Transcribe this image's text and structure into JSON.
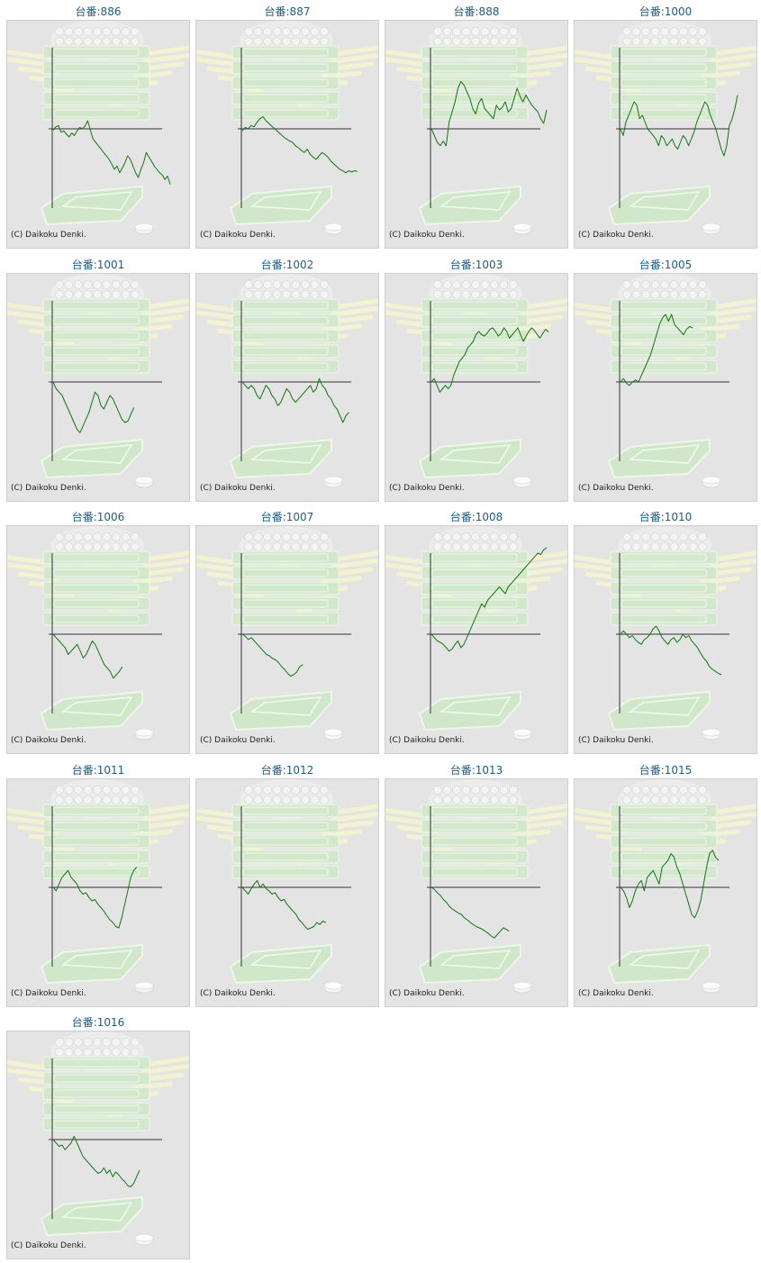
{
  "colors": {
    "title_text": "#1a5e86",
    "panel_bg": "#e4e4e4",
    "panel_border": "#cfcfcf",
    "line": "#117711",
    "axis": "#333333",
    "watermark_green": "#cfe8c8",
    "watermark_rays": "#f3f3d0"
  },
  "copyright": "(C) Daikoku Denki.",
  "chart_data": [
    {
      "type": "line",
      "title": "台番:886",
      "values": [
        -2,
        3,
        5,
        -5,
        -3,
        -8,
        -12,
        -6,
        -10,
        -3,
        2,
        0,
        4,
        12,
        -2,
        -15,
        -20,
        -25,
        -30,
        -35,
        -40,
        -45,
        -52,
        -60,
        -55,
        -65,
        -58,
        -50,
        -40,
        -45,
        -55,
        -65,
        -72,
        -60,
        -50,
        -35,
        -42,
        -48,
        -55,
        -60,
        -65,
        -68,
        -75,
        -70,
        -82
      ]
    },
    {
      "type": "line",
      "title": "台番:887",
      "values": [
        -3,
        2,
        0,
        5,
        3,
        10,
        15,
        18,
        12,
        8,
        4,
        0,
        -4,
        -8,
        -12,
        -15,
        -18,
        -20,
        -25,
        -28,
        -32,
        -35,
        -30,
        -38,
        -42,
        -45,
        -40,
        -35,
        -38,
        -42,
        -48,
        -52,
        -56,
        -60,
        -62,
        -65,
        -62,
        -64,
        -62,
        -63
      ]
    },
    {
      "type": "line",
      "title": "台番:888",
      "values": [
        0,
        -10,
        -20,
        -25,
        -18,
        -25,
        10,
        25,
        40,
        60,
        70,
        65,
        55,
        45,
        30,
        22,
        38,
        45,
        30,
        25,
        20,
        15,
        35,
        28,
        32,
        40,
        25,
        30,
        45,
        60,
        48,
        40,
        50,
        42,
        35,
        30,
        25,
        15,
        8,
        28
      ]
    },
    {
      "type": "line",
      "title": "台番:1000",
      "values": [
        0,
        -10,
        10,
        20,
        30,
        40,
        35,
        15,
        20,
        10,
        0,
        -5,
        -10,
        -15,
        -25,
        -10,
        -15,
        -25,
        -20,
        -15,
        -25,
        -30,
        -20,
        -10,
        -15,
        -25,
        -15,
        -5,
        10,
        20,
        30,
        40,
        35,
        20,
        10,
        0,
        -15,
        -30,
        -40,
        -25,
        5,
        15,
        30,
        50
      ]
    },
    {
      "type": "line",
      "title": "台番:1001",
      "values": [
        0,
        -10,
        -15,
        -20,
        -30,
        -40,
        -50,
        -60,
        -70,
        -75,
        -65,
        -55,
        -45,
        -30,
        -15,
        -20,
        -35,
        -40,
        -30,
        -20,
        -25,
        -35,
        -45,
        -55,
        -60,
        -58,
        -48,
        -38
      ]
    },
    {
      "type": "line",
      "title": "台番:1002",
      "values": [
        0,
        -5,
        -10,
        -5,
        -10,
        -20,
        -25,
        -15,
        -5,
        -10,
        -20,
        -25,
        -35,
        -30,
        -20,
        -10,
        -15,
        -25,
        -30,
        -25,
        -20,
        -15,
        -10,
        -5,
        -15,
        -10,
        5,
        -5,
        -10,
        -20,
        -25,
        -35,
        -40,
        -50,
        -60,
        -50,
        -45
      ]
    },
    {
      "type": "line",
      "title": "台番:1003",
      "values": [
        0,
        5,
        -5,
        -15,
        -10,
        -5,
        -10,
        -5,
        10,
        20,
        30,
        35,
        40,
        50,
        55,
        60,
        70,
        75,
        70,
        68,
        72,
        78,
        80,
        75,
        68,
        72,
        80,
        75,
        65,
        70,
        75,
        80,
        70,
        60,
        68,
        75,
        80,
        76,
        70,
        65,
        72,
        78,
        74
      ]
    },
    {
      "type": "line",
      "title": "台番:1005",
      "values": [
        0,
        5,
        -2,
        -5,
        0,
        3,
        0,
        10,
        20,
        30,
        40,
        55,
        70,
        85,
        95,
        100,
        90,
        100,
        85,
        80,
        75,
        70,
        78,
        82,
        80
      ]
    },
    {
      "type": "line",
      "title": "台番:1006",
      "values": [
        0,
        -5,
        -10,
        -15,
        -20,
        -30,
        -25,
        -20,
        -15,
        -25,
        -35,
        -30,
        -20,
        -10,
        -15,
        -25,
        -35,
        -45,
        -50,
        -55,
        -65,
        -60,
        -55,
        -48
      ]
    },
    {
      "type": "line",
      "title": "台番:1007",
      "values": [
        0,
        -3,
        -8,
        -5,
        -10,
        -15,
        -20,
        -25,
        -30,
        -32,
        -36,
        -38,
        -42,
        -48,
        -52,
        -58,
        -62,
        -60,
        -56,
        -48,
        -45
      ]
    },
    {
      "type": "line",
      "title": "台番:1008",
      "values": [
        0,
        -5,
        -10,
        -12,
        -15,
        -20,
        -25,
        -22,
        -15,
        -10,
        -20,
        -15,
        -5,
        5,
        15,
        25,
        35,
        45,
        40,
        50,
        55,
        60,
        65,
        70,
        65,
        60,
        70,
        75,
        80,
        85,
        90,
        95,
        100,
        105,
        110,
        115,
        120,
        118,
        125,
        128
      ]
    },
    {
      "type": "line",
      "title": "台番:1010",
      "values": [
        0,
        5,
        0,
        -5,
        -2,
        -8,
        -12,
        -15,
        -8,
        -5,
        0,
        8,
        12,
        5,
        -5,
        -10,
        -15,
        -8,
        -5,
        -12,
        -8,
        0,
        -5,
        -2,
        -10,
        -15,
        -20,
        -28,
        -35,
        -40,
        -48,
        -52,
        -55,
        -58,
        -60
      ]
    },
    {
      "type": "line",
      "title": "台番:1011",
      "values": [
        0,
        -5,
        5,
        15,
        20,
        25,
        15,
        10,
        5,
        -5,
        -10,
        -8,
        -15,
        -20,
        -18,
        -25,
        -30,
        -35,
        -42,
        -48,
        -52,
        -58,
        -60,
        -45,
        -25,
        -5,
        15,
        25,
        30
      ]
    },
    {
      "type": "line",
      "title": "台番:1012",
      "values": [
        0,
        -5,
        -10,
        -2,
        5,
        10,
        0,
        5,
        -2,
        -5,
        -10,
        -8,
        -15,
        -20,
        -18,
        -25,
        -30,
        -35,
        -40,
        -48,
        -52,
        -58,
        -62,
        -60,
        -58,
        -52,
        -55,
        -50,
        -52
      ]
    },
    {
      "type": "line",
      "title": "台番:1013",
      "values": [
        0,
        -3,
        -8,
        -12,
        -18,
        -22,
        -28,
        -32,
        -35,
        -38,
        -40,
        -45,
        -48,
        -52,
        -55,
        -58,
        -60,
        -62,
        -65,
        -68,
        -72,
        -75,
        -70,
        -65,
        -60,
        -62,
        -65
      ]
    },
    {
      "type": "line",
      "title": "台番:1015",
      "values": [
        0,
        -5,
        -15,
        -30,
        -20,
        -5,
        5,
        10,
        -5,
        15,
        20,
        25,
        15,
        5,
        30,
        35,
        40,
        50,
        45,
        30,
        20,
        5,
        -10,
        -25,
        -40,
        -45,
        -35,
        -20,
        5,
        30,
        50,
        55,
        45,
        40
      ]
    },
    {
      "type": "line",
      "title": "台番:1016",
      "values": [
        0,
        -5,
        -10,
        -8,
        -15,
        -10,
        -5,
        5,
        -5,
        -15,
        -25,
        -30,
        -35,
        -40,
        -45,
        -50,
        -48,
        -42,
        -50,
        -45,
        -55,
        -48,
        -52,
        -58,
        -62,
        -68,
        -70,
        -65,
        -55,
        -45
      ]
    }
  ]
}
